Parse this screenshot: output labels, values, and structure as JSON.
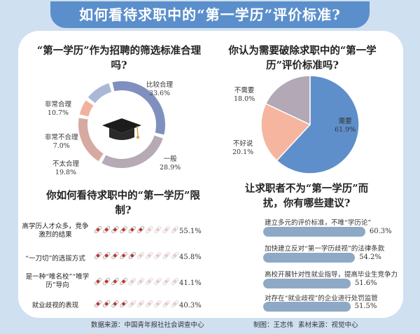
{
  "title": "如何看待求职中的“第一学历”评价标准?",
  "footer": {
    "source": "数据来源：中国青年报社社会调查中心",
    "editor": "制图：王志伟",
    "material": "素材来源：视觉中心"
  },
  "chart_data": [
    {
      "type": "pie",
      "title": "“第一学历”作为招聘的筛选标准合理吗?",
      "donut": true,
      "slices": [
        {
          "name": "比较合理",
          "value": 33.6,
          "label": "33.6%",
          "color": "#8090be"
        },
        {
          "name": "一般",
          "value": 28.9,
          "label": "28.9%",
          "color": "#b6aab5"
        },
        {
          "name": "不太合理",
          "value": 19.8,
          "label": "19.8%",
          "color": "#d6aaa0"
        },
        {
          "name": "非常不合理",
          "value": 7.0,
          "label": "7.0%",
          "color": "#f0b29f"
        },
        {
          "name": "非常合理",
          "value": 10.7,
          "label": "10.7%",
          "color": "#aab8d8"
        }
      ]
    },
    {
      "type": "pie",
      "title": "你认为需要破除求职中的“第一学历”评价标准吗?",
      "slices": [
        {
          "name": "需要",
          "value": 61.9,
          "label": "61.9%",
          "color": "#5f8fca"
        },
        {
          "name": "不好说",
          "value": 20.1,
          "label": "20.1%",
          "color": "#f5b59f"
        },
        {
          "name": "不需要",
          "value": 18.0,
          "label": "18.0%",
          "color": "#b3a8b6"
        }
      ]
    },
    {
      "type": "bar",
      "title": "你如何看待求职中的“第一学历”限制?",
      "categories": [
        "高学历人才众多，竞争激烈的结果",
        "“一刀切”的选拔方式",
        "是一种“唯名校”“唯学历”导向",
        "就业歧视的表现"
      ],
      "values": [
        55.1,
        45.8,
        41.1,
        40.3
      ],
      "labels": [
        "55.1%",
        "45.8%",
        "41.1%",
        "40.3%"
      ],
      "ylim": [
        0,
        100
      ]
    },
    {
      "type": "bar",
      "title": "让求职者不为“第一学历”而扰，你有哪些建议?",
      "categories": [
        "建立多元的评价标准，不唯“学历论”",
        "加快建立反对“第一学历歧视”的法律条款",
        "高校开展针对性就业指导，提高毕业生竞争力",
        "对存在“就业歧视”的企业进行处罚监管"
      ],
      "values": [
        60.3,
        54.2,
        51.6,
        51.5
      ],
      "labels": [
        "60.3%",
        "54.2%",
        "51.6%",
        "51.5%"
      ],
      "ylim": [
        0,
        100
      ]
    }
  ]
}
